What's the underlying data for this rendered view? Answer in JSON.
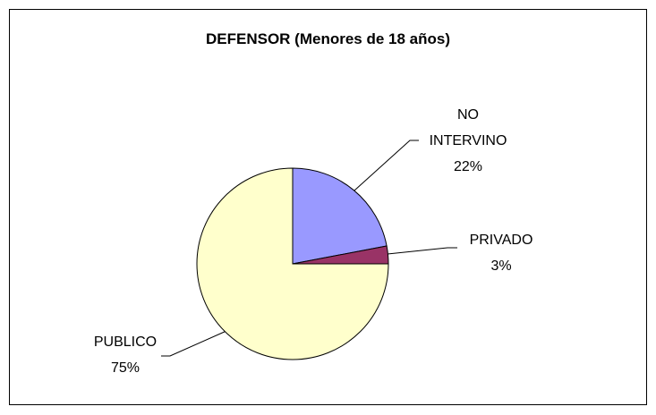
{
  "chart_data": {
    "type": "pie",
    "title": "DEFENSOR (Menores de 18 años)",
    "categories": [
      "NO INTERVINO",
      "PRIVADO",
      "PUBLICO"
    ],
    "values": [
      22,
      3,
      75
    ],
    "value_labels": [
      "22%",
      "3%",
      "75%"
    ],
    "colors": [
      "#9999ff",
      "#993366",
      "#ffffcc"
    ]
  }
}
